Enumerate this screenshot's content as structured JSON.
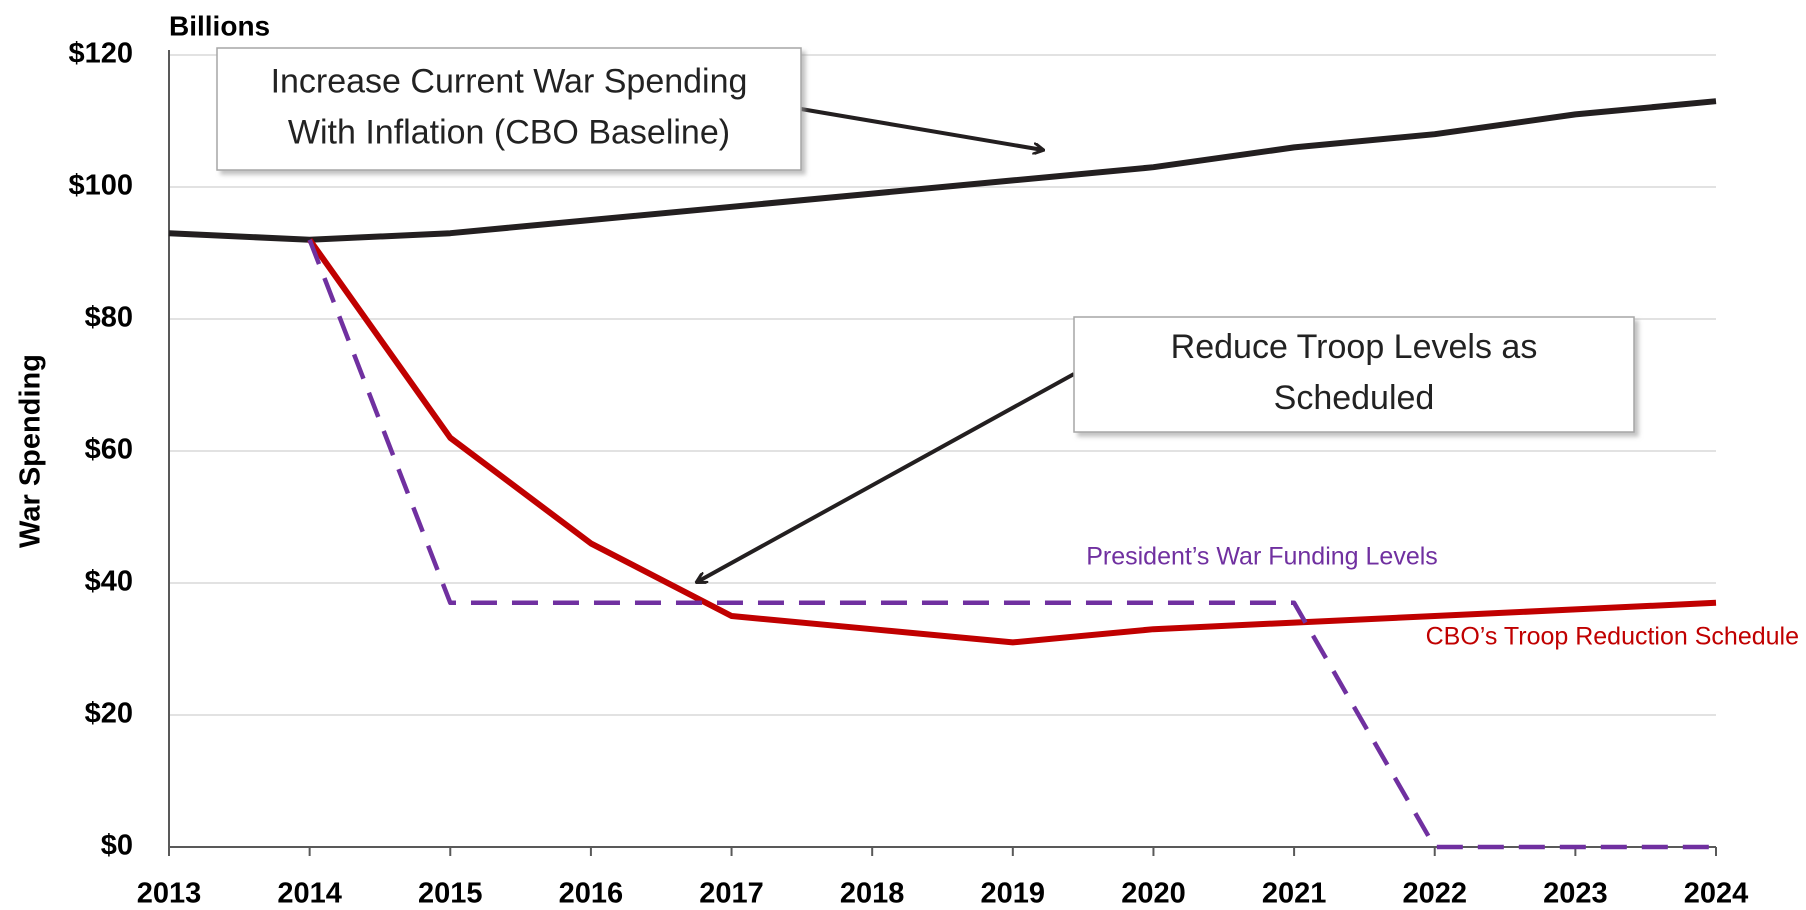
{
  "chart_data": {
    "type": "line",
    "y_unit_label": "Billions",
    "y_label": "War Spending",
    "x": [
      2013,
      2014,
      2015,
      2016,
      2017,
      2018,
      2019,
      2020,
      2021,
      2022,
      2023,
      2024
    ],
    "xlim": [
      2013,
      2024
    ],
    "xticks": [
      2013,
      2014,
      2015,
      2016,
      2017,
      2018,
      2019,
      2020,
      2021,
      2022,
      2023,
      2024
    ],
    "ylim": [
      0,
      120
    ],
    "yticks": [
      {
        "value": 0,
        "label": "$0"
      },
      {
        "value": 20,
        "label": "$20"
      },
      {
        "value": 40,
        "label": "$40"
      },
      {
        "value": 60,
        "label": "$60"
      },
      {
        "value": 80,
        "label": "$80"
      },
      {
        "value": 100,
        "label": "$100"
      },
      {
        "value": 120,
        "label": "$120"
      }
    ],
    "grid": true,
    "series": [
      {
        "color": "#231f20",
        "values": [
          93,
          92,
          93,
          95,
          97,
          99,
          101,
          103,
          106,
          108,
          111,
          113
        ]
      },
      {
        "name": "CBO’s Troop Reduction Schedule",
        "color": "#c00000",
        "values": [
          null,
          92,
          62,
          46,
          35,
          33,
          31,
          33,
          34,
          35,
          36,
          37
        ]
      },
      {
        "name": "President’s War Funding Levels",
        "color": "#7030a0",
        "dashed": true,
        "values": [
          null,
          92,
          37,
          37,
          37,
          37,
          37,
          37,
          37,
          0,
          0,
          0
        ]
      }
    ],
    "annotations": [
      {
        "lines": [
          "Increase Current War Spending",
          "With Inflation (CBO Baseline)"
        ]
      },
      {
        "lines": [
          "Reduce Troop Levels as",
          "Scheduled"
        ]
      }
    ]
  }
}
